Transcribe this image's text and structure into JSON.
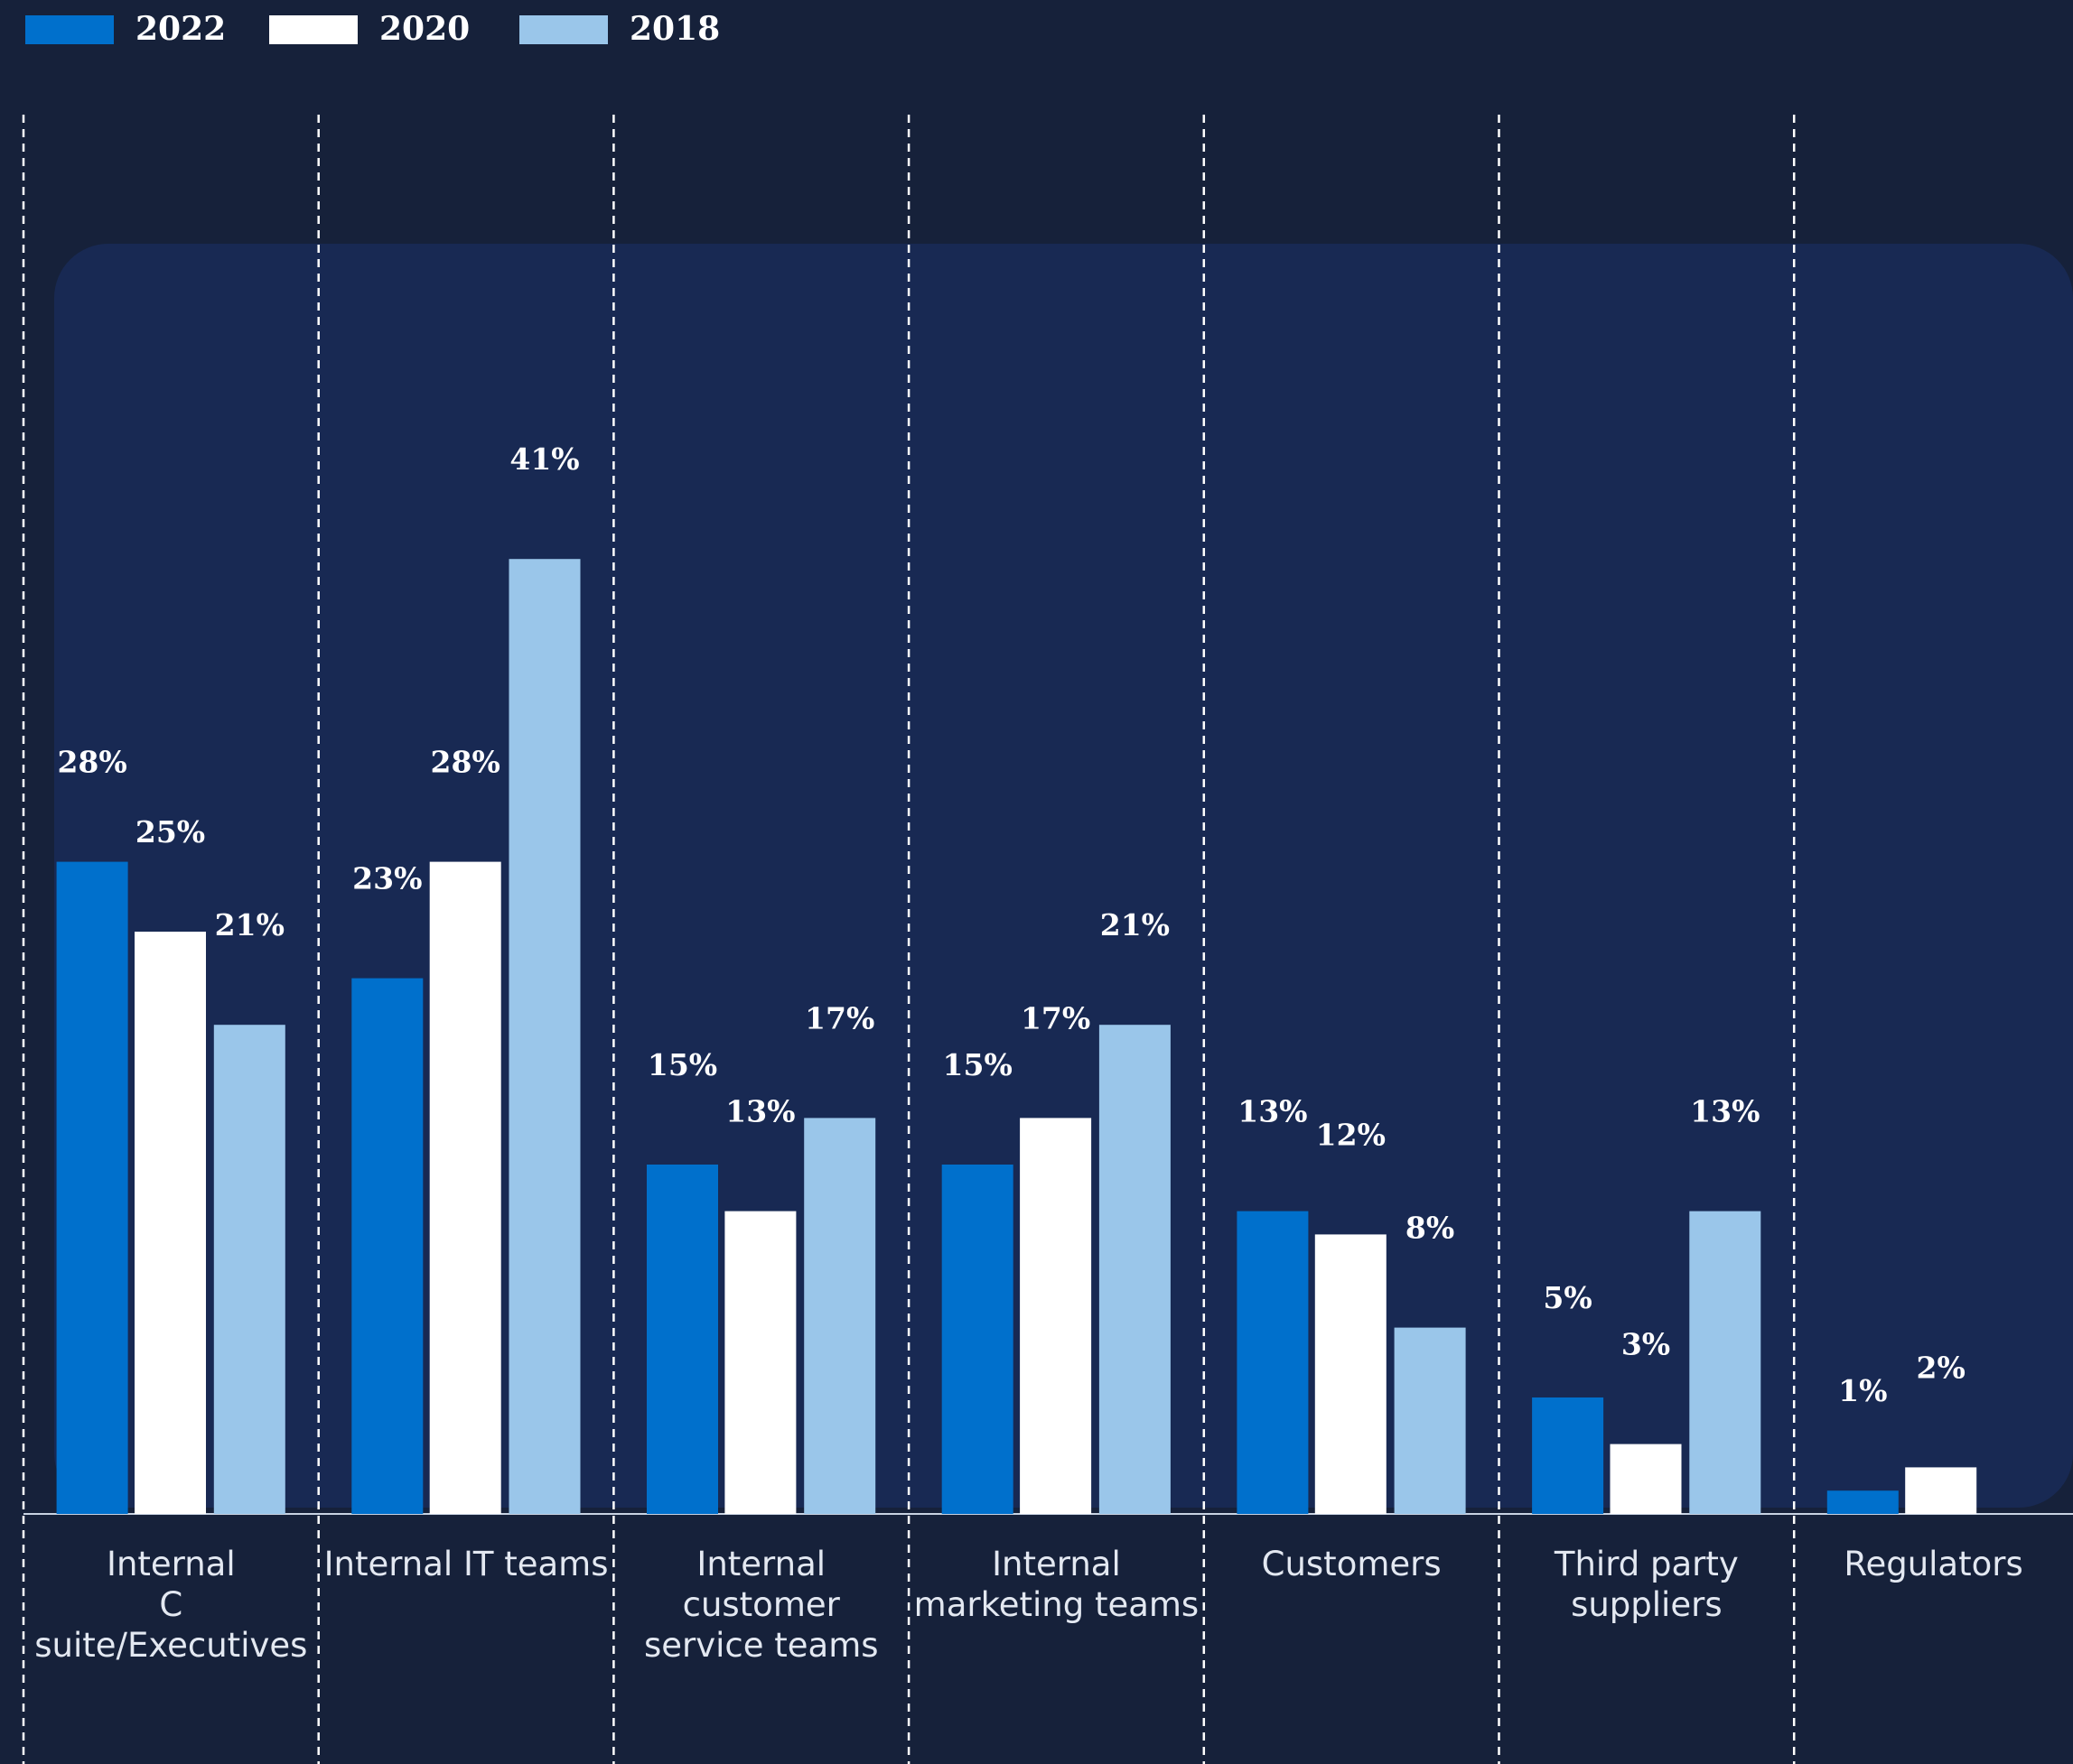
{
  "chart_data": {
    "type": "bar",
    "categories": [
      "Internal\nC suite/Executives",
      "Internal IT teams",
      "Internal customer\nservice teams",
      "Internal\nmarketing teams",
      "Customers",
      "Third party\nsuppliers",
      "Regulators"
    ],
    "series": [
      {
        "name": "2022",
        "color": "#0070cc",
        "values": [
          28,
          23,
          15,
          15,
          13,
          5,
          1
        ],
        "value_labels": [
          "28%",
          "23%",
          "15%",
          "15%",
          "13%",
          "5%",
          "1%"
        ]
      },
      {
        "name": "2020",
        "color": "#ffffff",
        "values": [
          25,
          28,
          13,
          17,
          12,
          3,
          2
        ],
        "value_labels": [
          "25%",
          "28%",
          "13%",
          "17%",
          "12%",
          "3%",
          "2%"
        ]
      },
      {
        "name": "2018",
        "color": "#9ac6ea",
        "values": [
          21,
          41,
          17,
          21,
          8,
          13,
          null
        ],
        "value_labels": [
          "21%",
          "41%",
          "17%",
          "21%",
          "8%",
          "13%",
          null
        ]
      }
    ],
    "ylim": [
      0,
      45
    ],
    "legend": "top-left"
  }
}
